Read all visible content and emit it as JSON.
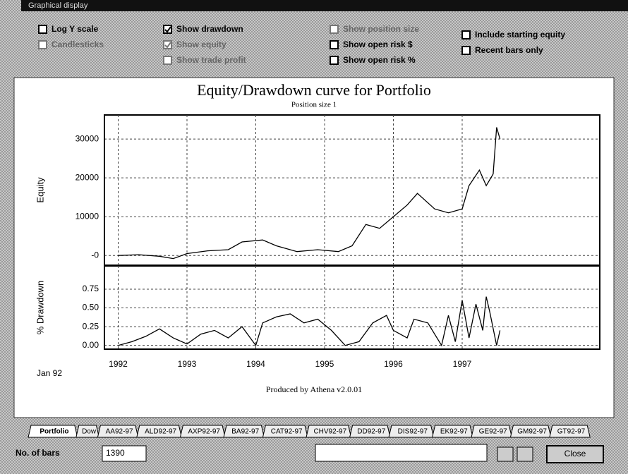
{
  "window": {
    "title": "Graphical display"
  },
  "options": [
    {
      "label": "Log Y scale",
      "checked": false,
      "enabled": true
    },
    {
      "label": "Candlesticks",
      "checked": false,
      "enabled": false
    },
    {
      "label": "Show drawdown",
      "checked": true,
      "enabled": true
    },
    {
      "label": "Show equity",
      "checked": true,
      "enabled": false
    },
    {
      "label": "Show trade profit",
      "checked": false,
      "enabled": false
    },
    {
      "label": "Show position size",
      "checked": false,
      "enabled": false
    },
    {
      "label": "Show open risk $",
      "checked": false,
      "enabled": true
    },
    {
      "label": "Show open risk %",
      "checked": false,
      "enabled": true
    },
    {
      "label": "Include starting equity",
      "checked": false,
      "enabled": true
    },
    {
      "label": "Recent bars only",
      "checked": false,
      "enabled": true
    }
  ],
  "chart_data": [
    {
      "type": "line",
      "title": "Equity/Drawdown curve for Portfolio",
      "subtitle": "Position size 1",
      "ylabel": "Equity",
      "color": "#000000",
      "x": [
        1992.0,
        1992.3,
        1992.6,
        1992.8,
        1993.0,
        1993.3,
        1993.6,
        1993.8,
        1994.1,
        1994.3,
        1994.6,
        1994.9,
        1995.2,
        1995.4,
        1995.6,
        1995.8,
        1996.0,
        1996.2,
        1996.35,
        1996.6,
        1996.8,
        1997.0,
        1997.1,
        1997.25,
        1997.35,
        1997.45,
        1997.5,
        1997.55
      ],
      "values": [
        0,
        200,
        -200,
        -800,
        500,
        1200,
        1500,
        3500,
        4000,
        2500,
        1000,
        1500,
        1000,
        2500,
        8000,
        7000,
        10000,
        13000,
        16000,
        12000,
        11000,
        12000,
        18000,
        22000,
        18000,
        21000,
        33000,
        30000
      ],
      "xlim": [
        1991.8,
        1999.0
      ],
      "xticks": [
        1992,
        1993,
        1994,
        1995,
        1996,
        1997
      ],
      "ylim": [
        -2500,
        36200
      ],
      "yticks": [
        {
          "value": 0,
          "label": "-0"
        },
        10000,
        20000,
        30000
      ],
      "grid": true
    },
    {
      "type": "line",
      "ylabel": "% Drawdown",
      "color": "#000000",
      "annotation": "Jan 92",
      "note": "Produced by Athena v2.0.01",
      "x": [
        1992.0,
        1992.2,
        1992.4,
        1992.6,
        1992.8,
        1993.0,
        1993.2,
        1993.4,
        1993.6,
        1993.8,
        1994.0,
        1994.1,
        1994.3,
        1994.5,
        1994.7,
        1994.9,
        1995.1,
        1995.3,
        1995.5,
        1995.7,
        1995.9,
        1996.0,
        1996.2,
        1996.3,
        1996.5,
        1996.7,
        1996.8,
        1996.9,
        1997.0,
        1997.1,
        1997.2,
        1997.3,
        1997.35,
        1997.4,
        1997.5,
        1997.55
      ],
      "values": [
        0.0,
        0.05,
        0.12,
        0.22,
        0.1,
        0.02,
        0.15,
        0.2,
        0.1,
        0.25,
        0.0,
        0.3,
        0.38,
        0.42,
        0.3,
        0.35,
        0.2,
        0.0,
        0.05,
        0.3,
        0.4,
        0.2,
        0.1,
        0.35,
        0.3,
        0.0,
        0.4,
        0.05,
        0.6,
        0.1,
        0.55,
        0.2,
        0.65,
        0.45,
        0.0,
        0.2
      ],
      "xlim": [
        1991.8,
        1999.0
      ],
      "xticks": [
        1992,
        1993,
        1994,
        1995,
        1996,
        1997
      ],
      "ylim": [
        -0.05,
        1.06
      ],
      "yticks": [
        {
          "value": 0,
          "label": "0.00"
        },
        0.25,
        {
          "value": 0.5,
          "label": "0.50"
        },
        0.75
      ],
      "grid": true
    }
  ],
  "tabs": [
    "Portfolio",
    "Dow",
    "AA92-97",
    "ALD92-97",
    "AXP92-97",
    "BA92-97",
    "CAT92-97",
    "CHV92-97",
    "DD92-97",
    "DIS92-97",
    "EK92-97",
    "GE92-97",
    "GM92-97",
    "GT92-97"
  ],
  "footer": {
    "bars_label": "No. of bars",
    "bars_value": "1390",
    "close": "Close"
  }
}
